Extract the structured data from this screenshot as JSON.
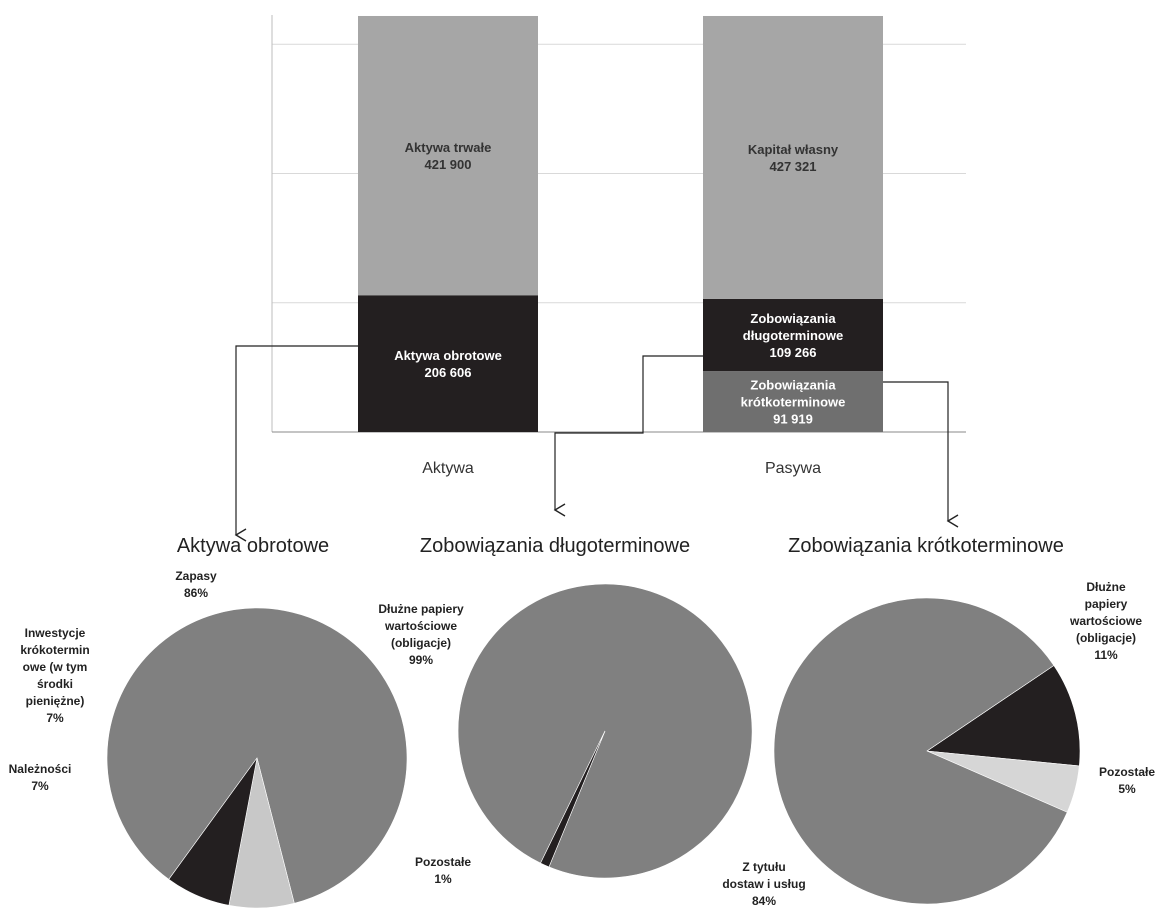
{
  "chart_data": [
    {
      "type": "bar",
      "stacked": true,
      "categories": [
        "Aktywa",
        "Pasywa"
      ],
      "series": [
        {
          "name": "Aktywa obrotowe",
          "values": [
            206606,
            null
          ]
        },
        {
          "name": "Aktywa trwałe",
          "values": [
            421900,
            null
          ]
        },
        {
          "name": "Zobowiązania krótkoterminowe",
          "values": [
            null,
            91919
          ]
        },
        {
          "name": "Zobowiązania długoterminowe",
          "values": [
            null,
            109266
          ]
        },
        {
          "name": "Kapitał własny",
          "values": [
            null,
            427321
          ]
        }
      ],
      "segments": [
        {
          "category": "Aktywa",
          "lines": [
            "Aktywa obrotowe",
            "206 606"
          ],
          "value": 206606,
          "color": "#231f20",
          "text_color": "#ffffff"
        },
        {
          "category": "Aktywa",
          "lines": [
            "Aktywa trwałe",
            "421 900"
          ],
          "value": 421900,
          "color": "#a6a6a6",
          "text_color": "#333333"
        },
        {
          "category": "Pasywa",
          "lines": [
            "Zobowiązania",
            "krótkoterminowe",
            "91 919"
          ],
          "value": 91919,
          "color": "#6f6f6f",
          "text_color": "#ffffff"
        },
        {
          "category": "Pasywa",
          "lines": [
            "Zobowiązania",
            "długoterminowe",
            "109 266"
          ],
          "value": 109266,
          "color": "#231f20",
          "text_color": "#ffffff"
        },
        {
          "category": "Pasywa",
          "lines": [
            "Kapitał własny",
            "427 321"
          ],
          "value": 427321,
          "color": "#a6a6a6",
          "text_color": "#333333"
        }
      ],
      "ylim": [
        0,
        630000
      ],
      "grid": true,
      "title": "",
      "xlabel": "",
      "ylabel": ""
    },
    {
      "type": "pie",
      "title": "Aktywa obrotowe",
      "slices": [
        {
          "name": "Zapasy",
          "value": 86,
          "label": [
            "Zapasy",
            "86%"
          ],
          "color": "#808080"
        },
        {
          "name": "Inwestycje krókoterminowe (w tym środki pieniężne)",
          "value": 7,
          "label": [
            "Inwestycje",
            "krókotermin",
            "owe (w tym",
            "środki",
            "pieniężne)",
            "7%"
          ],
          "color": "#c8c8c8"
        },
        {
          "name": "Należności",
          "value": 7,
          "label": [
            "Należności",
            "7%"
          ],
          "color": "#231f20"
        }
      ]
    },
    {
      "type": "pie",
      "title": "Zobowiązania długoterminowe",
      "slices": [
        {
          "name": "Dłużne papiery wartościowe (obligacje)",
          "value": 99,
          "label": [
            "Dłużne papiery",
            "wartościowe",
            "(obligacje)",
            "99%"
          ],
          "color": "#808080"
        },
        {
          "name": "Pozostałe",
          "value": 1,
          "label": [
            "Pozostałe",
            "1%"
          ],
          "color": "#231f20"
        }
      ]
    },
    {
      "type": "pie",
      "title": "Zobowiązania krótkoterminowe",
      "slices": [
        {
          "name": "Dłużne papiery wartościowe (obligacje)",
          "value": 11,
          "label": [
            "Dłużne",
            "papiery",
            "wartościowe",
            "(obligacje)",
            "11%"
          ],
          "color": "#231f20"
        },
        {
          "name": "Pozostałe",
          "value": 5,
          "label": [
            "Pozostałe",
            "5%"
          ],
          "color": "#d6d6d6"
        },
        {
          "name": "Z tytułu dostaw i usług",
          "value": 84,
          "label": [
            "Z tytułu",
            "dostaw i usług",
            "84%"
          ],
          "color": "#808080"
        }
      ]
    }
  ]
}
